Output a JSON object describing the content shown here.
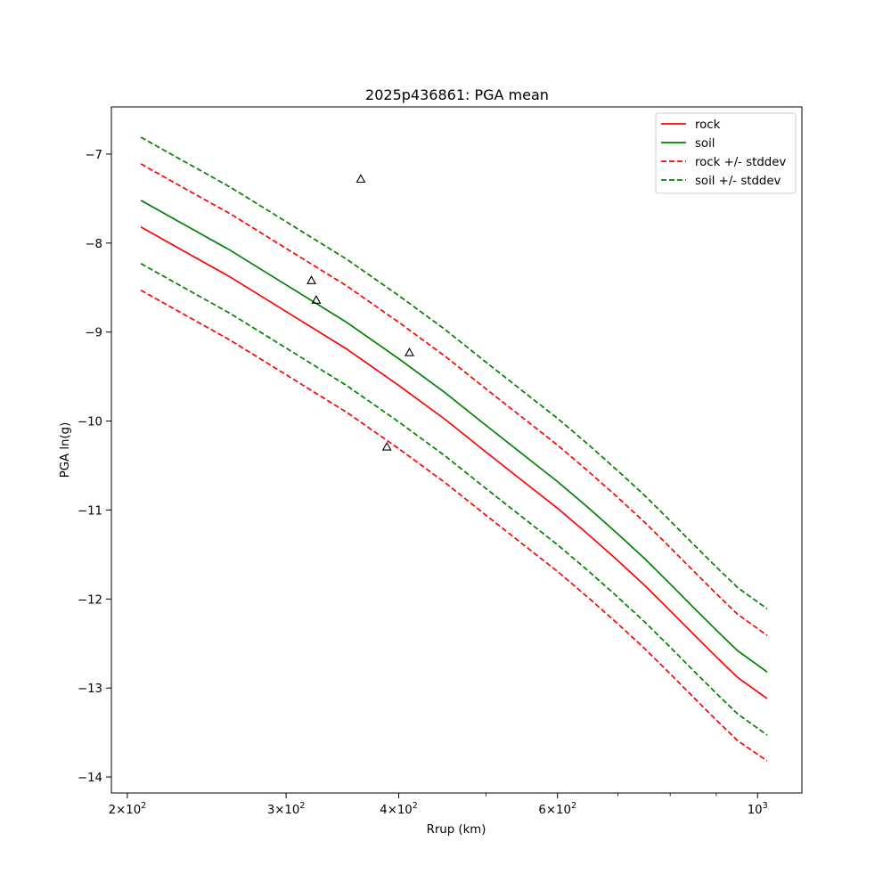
{
  "chart_data": {
    "type": "line",
    "title": "2025p436861: PGA mean",
    "xlabel": "Rrup (km)",
    "ylabel": "PGA ln(g)",
    "xscale": "log",
    "xlim": [
      192,
      1120
    ],
    "ylim": [
      -14.18,
      -6.47
    ],
    "grid": false,
    "legend_position": "top-right",
    "xticks": [
      {
        "value": 200,
        "base": "2×10",
        "exp": "2"
      },
      {
        "value": 300,
        "base": "3×10",
        "exp": "2"
      },
      {
        "value": 400,
        "base": "4×10",
        "exp": "2"
      },
      {
        "value": 600,
        "base": "6×10",
        "exp": "2"
      },
      {
        "value": 1000,
        "base": "10",
        "exp": "3"
      }
    ],
    "xminor_ticks": [
      500,
      700,
      800,
      900
    ],
    "yticks": [
      -14,
      -13,
      -12,
      -11,
      -10,
      -9,
      -8,
      -7
    ],
    "ytick_labels": [
      "−14",
      "−13",
      "−12",
      "−11",
      "−10",
      "−9",
      "−8",
      "−7"
    ],
    "x": [
      207,
      230,
      260,
      300,
      350,
      400,
      450,
      500,
      550,
      600,
      650,
      700,
      750,
      800,
      850,
      900,
      950,
      1025
    ],
    "series": [
      {
        "name": "rock",
        "color": "#ff0000",
        "dash": false,
        "values": [
          -7.82,
          -8.08,
          -8.38,
          -8.77,
          -9.19,
          -9.6,
          -9.98,
          -10.35,
          -10.68,
          -10.98,
          -11.28,
          -11.57,
          -11.85,
          -12.13,
          -12.4,
          -12.65,
          -12.88,
          -13.12
        ]
      },
      {
        "name": "soil",
        "color": "#008000",
        "dash": false,
        "values": [
          -7.52,
          -7.78,
          -8.08,
          -8.47,
          -8.89,
          -9.3,
          -9.68,
          -10.05,
          -10.38,
          -10.68,
          -10.98,
          -11.27,
          -11.55,
          -11.83,
          -12.1,
          -12.35,
          -12.58,
          -12.82
        ]
      },
      {
        "name": "rock +/- stddev",
        "color": "#ff0000",
        "dash": true,
        "values": [
          -7.11,
          -7.37,
          -7.67,
          -8.06,
          -8.48,
          -8.89,
          -9.27,
          -9.64,
          -9.97,
          -10.27,
          -10.57,
          -10.86,
          -11.14,
          -11.42,
          -11.69,
          -11.94,
          -12.17,
          -12.41
        ]
      },
      {
        "name": "",
        "color": "#ff0000",
        "dash": true,
        "values": [
          -8.53,
          -8.79,
          -9.09,
          -9.48,
          -9.9,
          -10.31,
          -10.69,
          -11.06,
          -11.39,
          -11.69,
          -11.99,
          -12.28,
          -12.56,
          -12.84,
          -13.11,
          -13.36,
          -13.59,
          -13.82
        ]
      },
      {
        "name": "soil +/- stddev",
        "color": "#008000",
        "dash": true,
        "values": [
          -6.81,
          -7.07,
          -7.37,
          -7.76,
          -8.18,
          -8.59,
          -8.97,
          -9.34,
          -9.67,
          -9.97,
          -10.27,
          -10.56,
          -10.84,
          -11.12,
          -11.39,
          -11.64,
          -11.87,
          -12.11
        ]
      },
      {
        "name": "",
        "color": "#008000",
        "dash": true,
        "values": [
          -8.23,
          -8.49,
          -8.79,
          -9.18,
          -9.6,
          -10.01,
          -10.39,
          -10.76,
          -11.09,
          -11.39,
          -11.69,
          -11.98,
          -12.26,
          -12.54,
          -12.81,
          -13.06,
          -13.29,
          -13.53
        ]
      }
    ],
    "observations": [
      {
        "x": 320,
        "y": -8.42
      },
      {
        "x": 324,
        "y": -8.64
      },
      {
        "x": 363,
        "y": -7.28
      },
      {
        "x": 388,
        "y": -10.29
      },
      {
        "x": 411,
        "y": -9.23
      }
    ],
    "legend": [
      {
        "label": "rock",
        "color": "#ff0000",
        "dash": false
      },
      {
        "label": "soil",
        "color": "#008000",
        "dash": false
      },
      {
        "label": "rock +/- stddev",
        "color": "#ff0000",
        "dash": true
      },
      {
        "label": "soil +/- stddev",
        "color": "#008000",
        "dash": true
      }
    ]
  }
}
